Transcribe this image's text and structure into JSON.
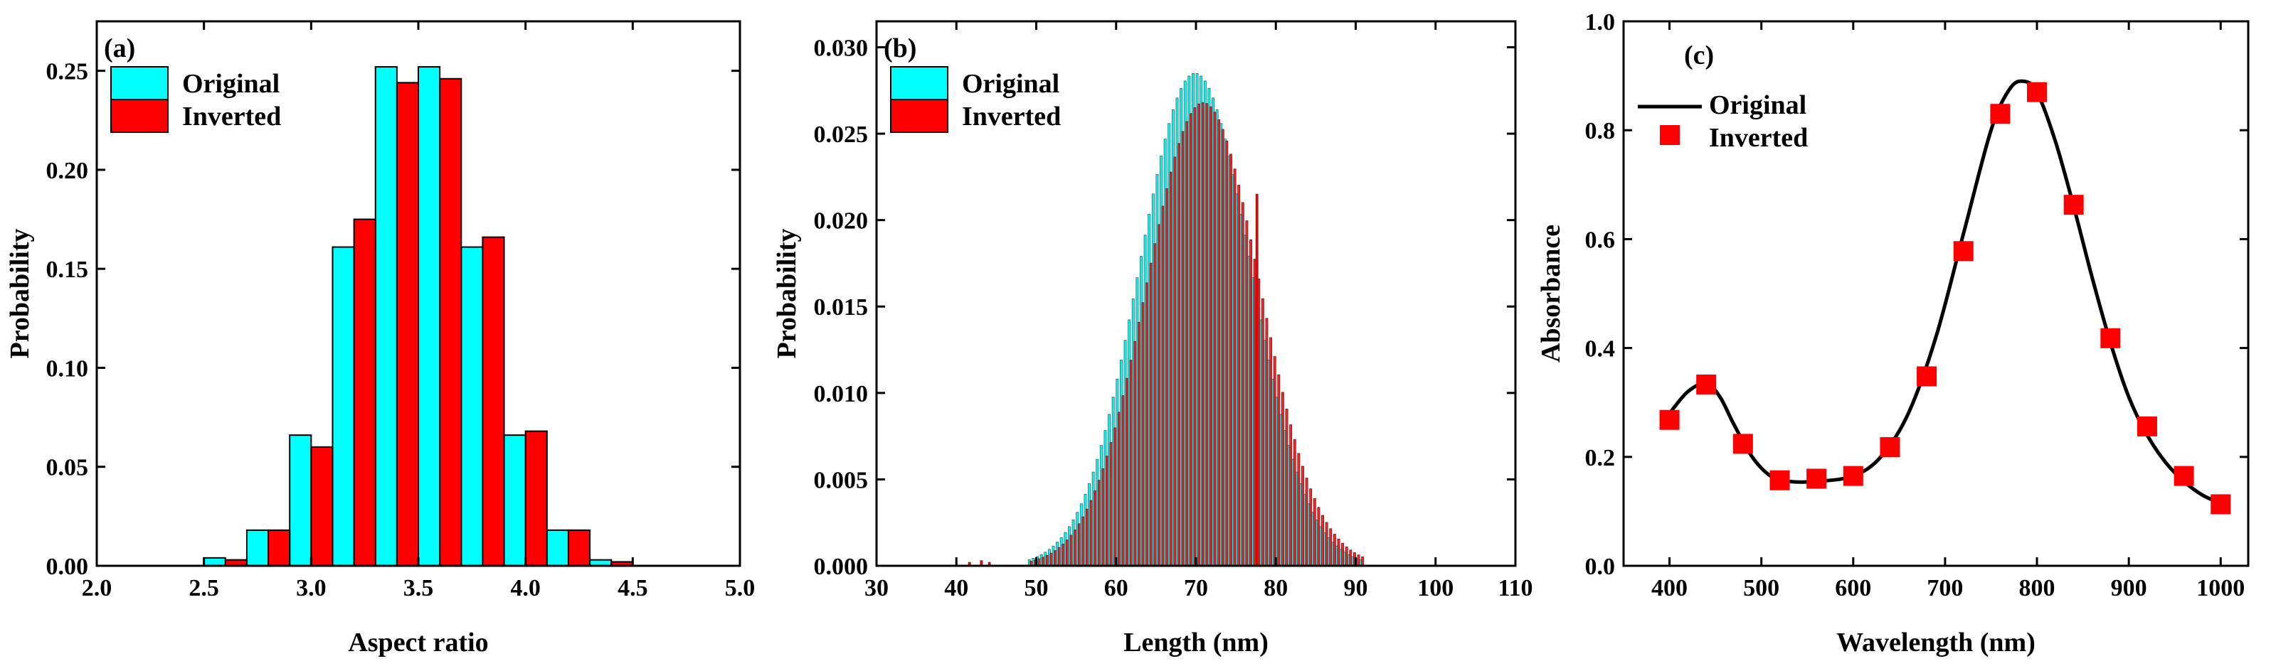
{
  "colors": {
    "original": "#00FFFF",
    "inverted": "#FF0000",
    "axis": "#000000",
    "original_line": "#000000",
    "inverted_marker": "#FF0000"
  },
  "chart_data": [
    {
      "type": "bar",
      "panel_label": "(a)",
      "xlabel": "Aspect ratio",
      "ylabel": "Probability",
      "xlim": [
        2.0,
        5.0
      ],
      "ylim": [
        0,
        0.275
      ],
      "xticks": [
        2.0,
        2.5,
        3.0,
        3.5,
        4.0,
        4.5,
        5.0
      ],
      "xtick_labels": [
        "2.0",
        "2.5",
        "3.0",
        "3.5",
        "4.0",
        "4.5",
        "5.0"
      ],
      "yticks": [
        0,
        0.05,
        0.1,
        0.15,
        0.2,
        0.25
      ],
      "ytick_labels": [
        "0.00",
        "0.05",
        "0.10",
        "0.15",
        "0.20",
        "0.25"
      ],
      "bin_width": 0.1,
      "legend": [
        "Original",
        "Inverted"
      ],
      "legend_position": "top-left",
      "series": [
        {
          "name": "Original",
          "bin_starts": [
            2.5,
            2.7,
            2.9,
            3.1,
            3.3,
            3.5,
            3.7,
            3.9,
            4.1,
            4.3
          ],
          "values": [
            0.004,
            0.018,
            0.066,
            0.161,
            0.252,
            0.252,
            0.161,
            0.066,
            0.018,
            0.003
          ]
        },
        {
          "name": "Inverted",
          "bin_starts": [
            2.6,
            2.8,
            3.0,
            3.2,
            3.4,
            3.6,
            3.8,
            4.0,
            4.2,
            4.4
          ],
          "values": [
            0.003,
            0.018,
            0.06,
            0.175,
            0.244,
            0.246,
            0.166,
            0.068,
            0.018,
            0.002
          ]
        }
      ]
    },
    {
      "type": "bar",
      "panel_label": "(b)",
      "xlabel": "Length (nm)",
      "ylabel": "Probability",
      "xlim": [
        30,
        110
      ],
      "ylim": [
        0,
        0.0315
      ],
      "xticks": [
        30,
        40,
        50,
        60,
        70,
        80,
        90,
        100,
        110
      ],
      "xtick_labels": [
        "30",
        "40",
        "50",
        "60",
        "70",
        "80",
        "90",
        "100",
        "110"
      ],
      "yticks": [
        0,
        0.005,
        0.01,
        0.015,
        0.02,
        0.025,
        0.03
      ],
      "ytick_labels": [
        "0.000",
        "0.005",
        "0.010",
        "0.015",
        "0.020",
        "0.025",
        "0.030"
      ],
      "legend": [
        "Original",
        "Inverted"
      ],
      "legend_position": "top-left",
      "series": [
        {
          "name": "Original",
          "distribution": "gaussian",
          "mean": 70.0,
          "sigma": 7.0,
          "peak": 0.0285,
          "range": [
            49,
            91
          ],
          "bin_width": 0.5
        },
        {
          "name": "Inverted",
          "distribution": "gaussian",
          "mean": 70.8,
          "sigma": 7.1,
          "peak": 0.0268,
          "range": [
            49,
            91
          ],
          "bin_width": 0.5,
          "spikes": [
            [
              77.5,
              0.0215
            ],
            [
              43.0,
              0.0003
            ],
            [
              41.5,
              0.0002
            ],
            [
              44.0,
              0.0002
            ]
          ]
        }
      ]
    },
    {
      "type": "line",
      "panel_label": "(c)",
      "xlabel": "Wavelength (nm)",
      "ylabel": "Absorbance",
      "xlim": [
        350,
        1030
      ],
      "ylim": [
        0,
        1.0
      ],
      "xticks": [
        400,
        500,
        600,
        700,
        800,
        900,
        1000
      ],
      "xtick_labels": [
        "400",
        "500",
        "600",
        "700",
        "800",
        "900",
        "1000"
      ],
      "yticks": [
        0,
        0.2,
        0.4,
        0.6,
        0.8,
        1.0
      ],
      "ytick_labels": [
        "0.0",
        "0.2",
        "0.4",
        "0.6",
        "0.8",
        "1.0"
      ],
      "legend": [
        "Original",
        "Inverted"
      ],
      "legend_position": "top-left",
      "series": [
        {
          "name": "Original",
          "style": "line",
          "x": [
            400,
            420,
            440,
            455,
            470,
            490,
            510,
            530,
            560,
            600,
            630,
            660,
            690,
            720,
            750,
            770,
            785,
            800,
            820,
            840,
            860,
            880,
            900,
            920,
            940,
            960,
            980,
            1000
          ],
          "y": [
            0.28,
            0.32,
            0.335,
            0.31,
            0.26,
            0.2,
            0.165,
            0.155,
            0.155,
            0.165,
            0.2,
            0.28,
            0.42,
            0.61,
            0.8,
            0.875,
            0.89,
            0.87,
            0.78,
            0.66,
            0.53,
            0.41,
            0.31,
            0.24,
            0.19,
            0.155,
            0.13,
            0.115
          ]
        },
        {
          "name": "Inverted",
          "style": "square-markers",
          "x": [
            400,
            440,
            480,
            520,
            560,
            600,
            640,
            680,
            720,
            760,
            800,
            840,
            880,
            920,
            960,
            1000
          ],
          "y": [
            0.268,
            0.333,
            0.224,
            0.157,
            0.16,
            0.165,
            0.218,
            0.348,
            0.578,
            0.83,
            0.87,
            0.663,
            0.418,
            0.256,
            0.165,
            0.113
          ]
        }
      ]
    }
  ]
}
